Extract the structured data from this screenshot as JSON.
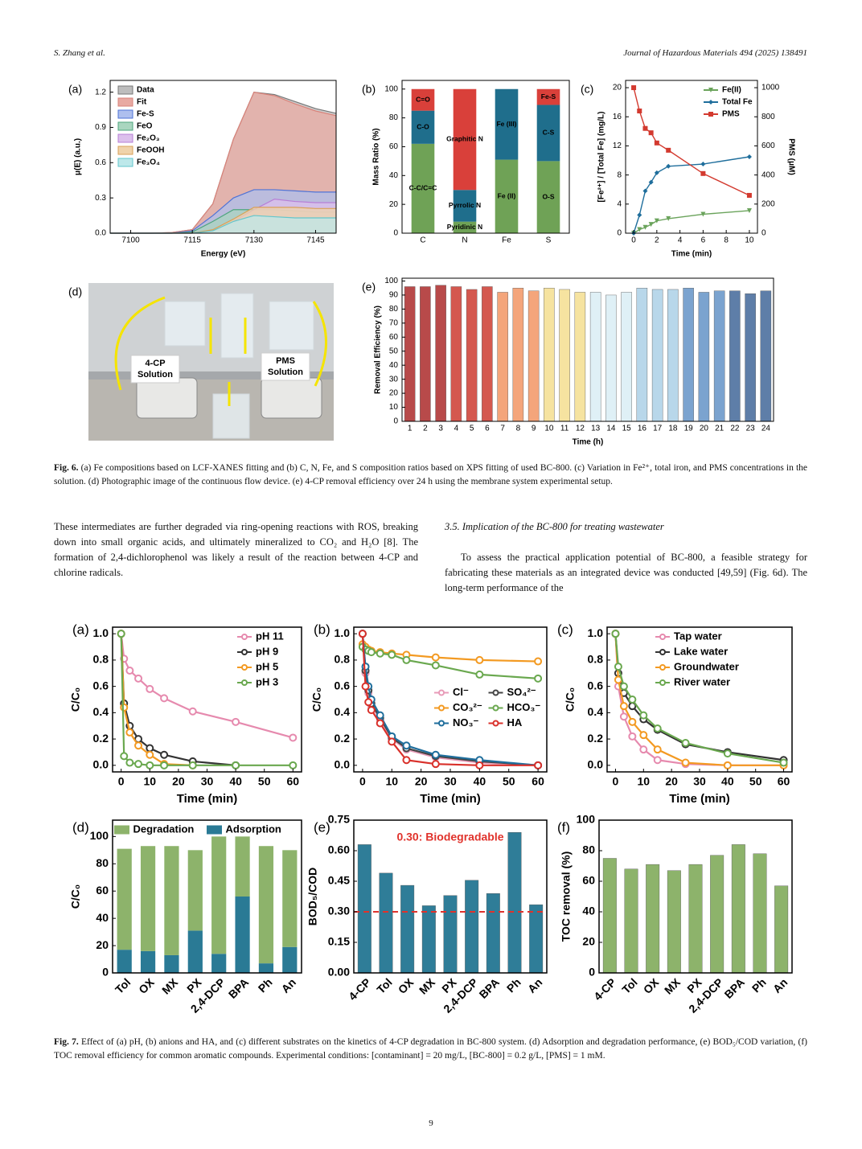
{
  "header": {
    "authors": "S. Zhang et al.",
    "journal": "Journal of Hazardous Materials 494 (2025) 138491"
  },
  "panels": [
    {
      "type": "area",
      "label": "(a)",
      "xlabel": "Energy (eV)",
      "ylabel": "μ(E) (a.u.)",
      "x": [
        7095,
        7100,
        7105,
        7110,
        7115,
        7120,
        7125,
        7130,
        7135,
        7140,
        7145,
        7150
      ],
      "xlim": [
        7095,
        7150
      ],
      "xticks": [
        7100,
        7115,
        7130,
        7145
      ],
      "ylim": [
        0,
        1.3
      ],
      "yticks": [
        {
          "value": 0,
          "label": "0.0"
        },
        0.3,
        0.6,
        0.9,
        1.2
      ],
      "legend": "upper left",
      "series": [
        {
          "name": "Data",
          "color": "#777777",
          "fill": "#bdbdbd",
          "values": [
            0,
            0,
            0,
            0.005,
            0.03,
            0.25,
            0.8,
            1.2,
            1.18,
            1.12,
            1.06,
            1.02
          ]
        },
        {
          "name": "Fit",
          "color": "#d9837a",
          "fill": "#e8a9a2",
          "values": [
            0,
            0,
            0,
            0.005,
            0.03,
            0.25,
            0.8,
            1.2,
            1.17,
            1.1,
            1.04,
            1.0
          ]
        },
        {
          "name": "Fe-S",
          "color": "#4f73d6",
          "fill": "#aebfee",
          "values": [
            0,
            0,
            0,
            0,
            0.02,
            0.15,
            0.3,
            0.37,
            0.37,
            0.36,
            0.35,
            0.35
          ]
        },
        {
          "name": "FeO",
          "color": "#4ea57e",
          "fill": "#a9d6bf",
          "values": [
            0,
            0,
            0,
            0,
            0.01,
            0.1,
            0.2,
            0.2,
            0.2,
            0.19,
            0.18,
            0.18
          ]
        },
        {
          "name": "Fe₂O₃",
          "color": "#b77fd6",
          "fill": "#dcc0ec",
          "values": [
            0,
            0,
            0,
            0,
            0,
            0.02,
            0.1,
            0.2,
            0.29,
            0.27,
            0.26,
            0.26
          ]
        },
        {
          "name": "FeOOH",
          "color": "#d9a058",
          "fill": "#f0d3ab",
          "values": [
            0,
            0,
            0,
            0,
            0,
            0.03,
            0.12,
            0.22,
            0.22,
            0.22,
            0.21,
            0.21
          ]
        },
        {
          "name": "Fe₃O₄",
          "color": "#62c6cc",
          "fill": "#bde8ea",
          "values": [
            0,
            0,
            0,
            0,
            0,
            0.02,
            0.1,
            0.15,
            0.14,
            0.13,
            0.13,
            0.13
          ]
        }
      ]
    },
    {
      "type": "stacked",
      "label": "(b)",
      "ylabel": "Mass Ratio (%)",
      "ylim": [
        0,
        106
      ],
      "yticks": [
        0,
        20,
        40,
        60,
        80,
        100
      ],
      "categories": [
        "C",
        "N",
        "Fe",
        "S"
      ],
      "stacks": [
        {
          "segments": [
            {
              "label": "C-C/C=C",
              "value": 62,
              "color": "#6fa256"
            },
            {
              "label": "C-O",
              "value": 23,
              "color": "#1f6e8c"
            },
            {
              "label": "C=O",
              "value": 15,
              "color": "#d9403a"
            }
          ]
        },
        {
          "segments": [
            {
              "label": "Pyridinic N",
              "value": 8,
              "color": "#6fa256"
            },
            {
              "label": "Pyrrolic N",
              "value": 22,
              "color": "#1f6e8c"
            },
            {
              "label": "Graphitic N",
              "value": 70,
              "color": "#d9403a"
            }
          ]
        },
        {
          "segments": [
            {
              "label": "Fe (II)",
              "value": 51,
              "color": "#6fa256"
            },
            {
              "label": "Fe (III)",
              "value": 49,
              "color": "#1f6e8c"
            }
          ]
        },
        {
          "segments": [
            {
              "label": "O-S",
              "value": 50,
              "color": "#6fa256"
            },
            {
              "label": "C-S",
              "value": 39,
              "color": "#1f6e8c"
            },
            {
              "label": "Fe-S",
              "value": 11,
              "color": "#d9403a"
            }
          ]
        }
      ]
    },
    {
      "type": "line",
      "label": "(c)",
      "xlabel": "Time (min)",
      "ylabel": "[Fe²⁺] / [Total Fe] (mg/L)",
      "y2label": "PMS (μM)",
      "x": [
        0,
        0.5,
        1,
        1.5,
        2,
        3,
        6,
        10
      ],
      "xlim": [
        -0.7,
        10.7
      ],
      "xticks": [
        0,
        2,
        4,
        6,
        8,
        10
      ],
      "ylim": [
        0,
        21
      ],
      "yticks": [
        0,
        4,
        8,
        12,
        16,
        20
      ],
      "y2lim": [
        0,
        1050
      ],
      "y2ticks": [
        0,
        200,
        400,
        600,
        800,
        1000
      ],
      "legend": "upper right",
      "series": [
        {
          "name": "Fe(II)",
          "color": "#6aa35b",
          "marker": "triangle",
          "values": [
            0,
            0.5,
            0.8,
            1.2,
            1.7,
            2,
            2.6,
            3.1
          ]
        },
        {
          "name": "Total Fe",
          "color": "#1f6e9c",
          "marker": "diamond",
          "values": [
            0,
            2.5,
            5.8,
            7,
            8.3,
            9.2,
            9.5,
            10.5
          ]
        },
        {
          "name": "PMS",
          "color": "#d33a2f",
          "marker": "square",
          "axis": "y2",
          "values": [
            1000,
            840,
            720,
            690,
            620,
            570,
            410,
            260
          ]
        }
      ]
    },
    {
      "type": "photo",
      "label": "(d)",
      "labels": [
        {
          "lines": [
            "4-CP",
            "Solution"
          ]
        },
        {
          "lines": [
            "PMS",
            "Solution"
          ]
        }
      ]
    },
    {
      "type": "bar",
      "label": "(e)",
      "xlabel": "Time (h)",
      "ylabel": "Removal Efficiency (%)",
      "ylim": [
        0,
        102
      ],
      "yticks": [
        0,
        10,
        20,
        30,
        40,
        50,
        60,
        70,
        80,
        90,
        100
      ],
      "categories": [
        "1",
        "2",
        "3",
        "4",
        "5",
        "6",
        "7",
        "8",
        "9",
        "10",
        "11",
        "12",
        "13",
        "14",
        "15",
        "16",
        "17",
        "18",
        "19",
        "20",
        "21",
        "22",
        "23",
        "24"
      ],
      "values": [
        96,
        96,
        97,
        96,
        94,
        96,
        92,
        95,
        93,
        95,
        94,
        92,
        92,
        90,
        92,
        95,
        94,
        94,
        95,
        92,
        93,
        93,
        91,
        93
      ],
      "colors": [
        "#b84a4a",
        "#b84a4a",
        "#b84a4a",
        "#d4584f",
        "#d4584f",
        "#d4584f",
        "#f4a57b",
        "#f4a57b",
        "#f4a57b",
        "#f6e3a0",
        "#f6e3a0",
        "#f6e3a0",
        "#dff0f6",
        "#dff0f6",
        "#dff0f6",
        "#b8d7ea",
        "#b8d7ea",
        "#b8d7ea",
        "#7ba3cf",
        "#7ba3cf",
        "#7ba3cf",
        "#5e7ea8",
        "#5e7ea8",
        "#5e7ea8"
      ]
    },
    {
      "type": "line",
      "label": "(a)",
      "xlabel": "Time (min)",
      "ylabel": "C/C₀",
      "x": [
        0,
        1,
        3,
        6,
        10,
        15,
        25,
        40,
        60
      ],
      "xlim": [
        -3,
        63
      ],
      "xticks": [
        0,
        10,
        20,
        30,
        40,
        50,
        60
      ],
      "ylim": [
        -0.05,
        1.05
      ],
      "yticks": [
        {
          "value": 0,
          "label": "0.0"
        },
        0.2,
        0.4,
        0.6,
        0.8,
        {
          "value": 1,
          "label": "1.0"
        }
      ],
      "legend": "upper right",
      "series": [
        {
          "name": "pH 11",
          "color": "#e68aae",
          "marker": "circle",
          "values": [
            1,
            0.81,
            0.72,
            0.66,
            0.58,
            0.51,
            0.41,
            0.33,
            0.21
          ]
        },
        {
          "name": "pH 9",
          "color": "#333333",
          "marker": "circle",
          "values": [
            1,
            0.47,
            0.3,
            0.2,
            0.13,
            0.08,
            0.03,
            0,
            null
          ]
        },
        {
          "name": "pH 5",
          "color": "#f39a22",
          "marker": "circle",
          "values": [
            1,
            0.44,
            0.25,
            0.15,
            0.08,
            0.01,
            0,
            null,
            null
          ]
        },
        {
          "name": "pH 3",
          "color": "#6aa84f",
          "marker": "circle",
          "values": [
            1,
            0.07,
            0.02,
            0.01,
            0,
            0,
            0,
            0,
            0
          ]
        }
      ]
    },
    {
      "type": "line",
      "label": "(b)",
      "xlabel": "Time (min)",
      "ylabel": "C/C₀",
      "x": [
        0,
        1,
        2,
        3,
        6,
        10,
        15,
        25,
        40,
        60
      ],
      "xlim": [
        -3,
        63
      ],
      "xticks": [
        0,
        10,
        20,
        30,
        40,
        50,
        60
      ],
      "ylim": [
        -0.05,
        1.05
      ],
      "yticks": [
        {
          "value": 0,
          "label": "0.0"
        },
        0.2,
        0.4,
        0.6,
        0.8,
        {
          "value": 1,
          "label": "1.0"
        }
      ],
      "legend": "center right",
      "legend_ncol": 2,
      "series": [
        {
          "name": "Cl⁻",
          "color": "#e89bb8",
          "marker": "circle",
          "values": [
            1,
            0.7,
            0.55,
            0.45,
            0.35,
            0.2,
            0.12,
            0.06,
            0.02,
            0
          ]
        },
        {
          "name": "SO₄²⁻",
          "color": "#444444",
          "marker": "circle",
          "values": [
            1,
            0.72,
            0.57,
            0.47,
            0.36,
            0.21,
            0.13,
            0.07,
            0.03,
            0
          ]
        },
        {
          "name": "CO₃²⁻",
          "color": "#f39a22",
          "marker": "circle",
          "values": [
            0.92,
            0.9,
            0.88,
            0.87,
            0.86,
            0.85,
            0.84,
            0.82,
            0.8,
            0.79
          ]
        },
        {
          "name": "HCO₃⁻",
          "color": "#6aa84f",
          "marker": "circle",
          "values": [
            0.9,
            0.88,
            0.87,
            0.86,
            0.85,
            0.84,
            0.8,
            0.76,
            0.69,
            0.66
          ]
        },
        {
          "name": "NO₃⁻",
          "color": "#1f6e9c",
          "marker": "circle",
          "values": [
            1,
            0.75,
            0.6,
            0.5,
            0.38,
            0.22,
            0.15,
            0.08,
            0.04,
            0
          ]
        },
        {
          "name": "HA",
          "color": "#d9312b",
          "marker": "circle",
          "values": [
            1,
            0.6,
            0.48,
            0.42,
            0.32,
            0.18,
            0.04,
            0.01,
            0,
            0
          ]
        }
      ]
    },
    {
      "type": "line",
      "label": "(c)",
      "xlabel": "Time (min)",
      "ylabel": "C/C₀",
      "x": [
        0,
        1,
        3,
        6,
        10,
        15,
        25,
        40,
        60
      ],
      "xlim": [
        -3,
        63
      ],
      "xticks": [
        0,
        10,
        20,
        30,
        40,
        50,
        60
      ],
      "ylim": [
        -0.05,
        1.05
      ],
      "yticks": [
        {
          "value": 0,
          "label": "0.0"
        },
        0.2,
        0.4,
        0.6,
        0.8,
        {
          "value": 1,
          "label": "1.0"
        }
      ],
      "legend": "upper center",
      "series": [
        {
          "name": "Tap water",
          "color": "#e68aae",
          "marker": "circle",
          "values": [
            1,
            0.6,
            0.37,
            0.22,
            0.12,
            0.04,
            0.01,
            0,
            0
          ]
        },
        {
          "name": "Lake water",
          "color": "#333333",
          "marker": "circle",
          "values": [
            1,
            0.7,
            0.55,
            0.45,
            0.35,
            0.27,
            0.16,
            0.1,
            0.04
          ]
        },
        {
          "name": "Groundwater",
          "color": "#f39a22",
          "marker": "circle",
          "values": [
            1,
            0.65,
            0.45,
            0.33,
            0.23,
            0.12,
            0.02,
            0,
            0
          ]
        },
        {
          "name": "River water",
          "color": "#6aa84f",
          "marker": "circle",
          "values": [
            1,
            0.75,
            0.6,
            0.5,
            0.38,
            0.28,
            0.17,
            0.09,
            0.02
          ]
        }
      ]
    },
    {
      "type": "stacked",
      "label": "(d)",
      "ylabel": "C/C₀",
      "ylim": [
        0,
        112
      ],
      "yticks": [
        0,
        20,
        40,
        60,
        80,
        100
      ],
      "legend": "upper center",
      "legend_ncol": 2,
      "categories": [
        "Tol",
        "OX",
        "MX",
        "PX",
        "2,4-DCP",
        "BPA",
        "Ph",
        "An"
      ],
      "series": [
        {
          "name": "Degradation",
          "color": "#8db36b",
          "values": [
            74,
            77,
            80,
            59,
            86,
            44,
            86,
            71
          ]
        },
        {
          "name": "Adsorption",
          "color": "#2a7a95",
          "values": [
            17,
            16,
            13,
            31,
            14,
            56,
            7,
            19
          ]
        }
      ]
    },
    {
      "type": "bar",
      "label": "(e)",
      "ylabel": "BOD₅/COD",
      "ylim": [
        0,
        0.75
      ],
      "yticks": [
        {
          "value": 0,
          "label": "0.00"
        },
        {
          "value": 0.15,
          "label": "0.15"
        },
        {
          "value": 0.3,
          "label": "0.30"
        },
        {
          "value": 0.45,
          "label": "0.45"
        },
        {
          "value": 0.6,
          "label": "0.60"
        },
        {
          "value": 0.75,
          "label": "0.75"
        }
      ],
      "categories": [
        "4-CP",
        "Tol",
        "OX",
        "MX",
        "PX",
        "2,4-DCP",
        "BPA",
        "Ph",
        "An"
      ],
      "values": [
        0.63,
        0.49,
        0.43,
        0.33,
        0.38,
        0.455,
        0.39,
        0.69,
        0.335
      ],
      "color": "#2f7d98",
      "ref_line": 0.3,
      "ref_color": "#e0322b",
      "annotation": "0.30: Biodegradable"
    },
    {
      "type": "bar",
      "label": "(f)",
      "ylabel": "TOC removal (%)",
      "ylim": [
        0,
        100
      ],
      "yticks": [
        0,
        20,
        40,
        60,
        80,
        100
      ],
      "categories": [
        "4-CP",
        "Tol",
        "OX",
        "MX",
        "PX",
        "2,4-DCP",
        "BPA",
        "Ph",
        "An"
      ],
      "values": [
        75,
        68,
        71,
        67,
        71,
        77,
        84,
        78,
        57
      ],
      "color": "#8db36b"
    }
  ],
  "captions": [
    {
      "label": "Fig. 6.",
      "text": "(a) Fe compositions based on LCF-XANES fitting and (b) C, N, Fe, and S composition ratios based on XPS fitting of used BC-800. (c) Variation in Fe²⁺, total iron, and PMS concentrations in the solution. (d) Photographic image of the continuous flow device. (e) 4-CP removal efficiency over 24 h using the membrane system experimental setup."
    },
    {
      "label": "Fig. 7.",
      "text": "Effect of (a) pH, (b) anions and HA, and (c) different substrates on the kinetics of 4-CP degradation in BC-800 system. (d) Adsorption and degradation performance, (e) BOD₅/COD variation, (f) TOC removal efficiency for common aromatic compounds. Experimental conditions: [contaminant] = 20 mg/L, [BC-800] = 0.2 g/L, [PMS] = 1 mM."
    }
  ],
  "body": {
    "left": "These intermediates are further degraded via ring-opening reactions with ROS, breaking down into small organic acids, and ultimately mineralized to CO₂ and H₂O [8]. The formation of 2,4-dichlorophenol was likely a result of the reaction between 4-CP and chlorine radicals.",
    "section": "3.5. Implication of the BC-800 for treating wastewater",
    "right": "To assess the practical application potential of BC-800, a feasible strategy for fabricating these materials as an integrated device was conducted [49,59] (Fig. 6d). The long-term performance of the"
  },
  "page_number": "9"
}
